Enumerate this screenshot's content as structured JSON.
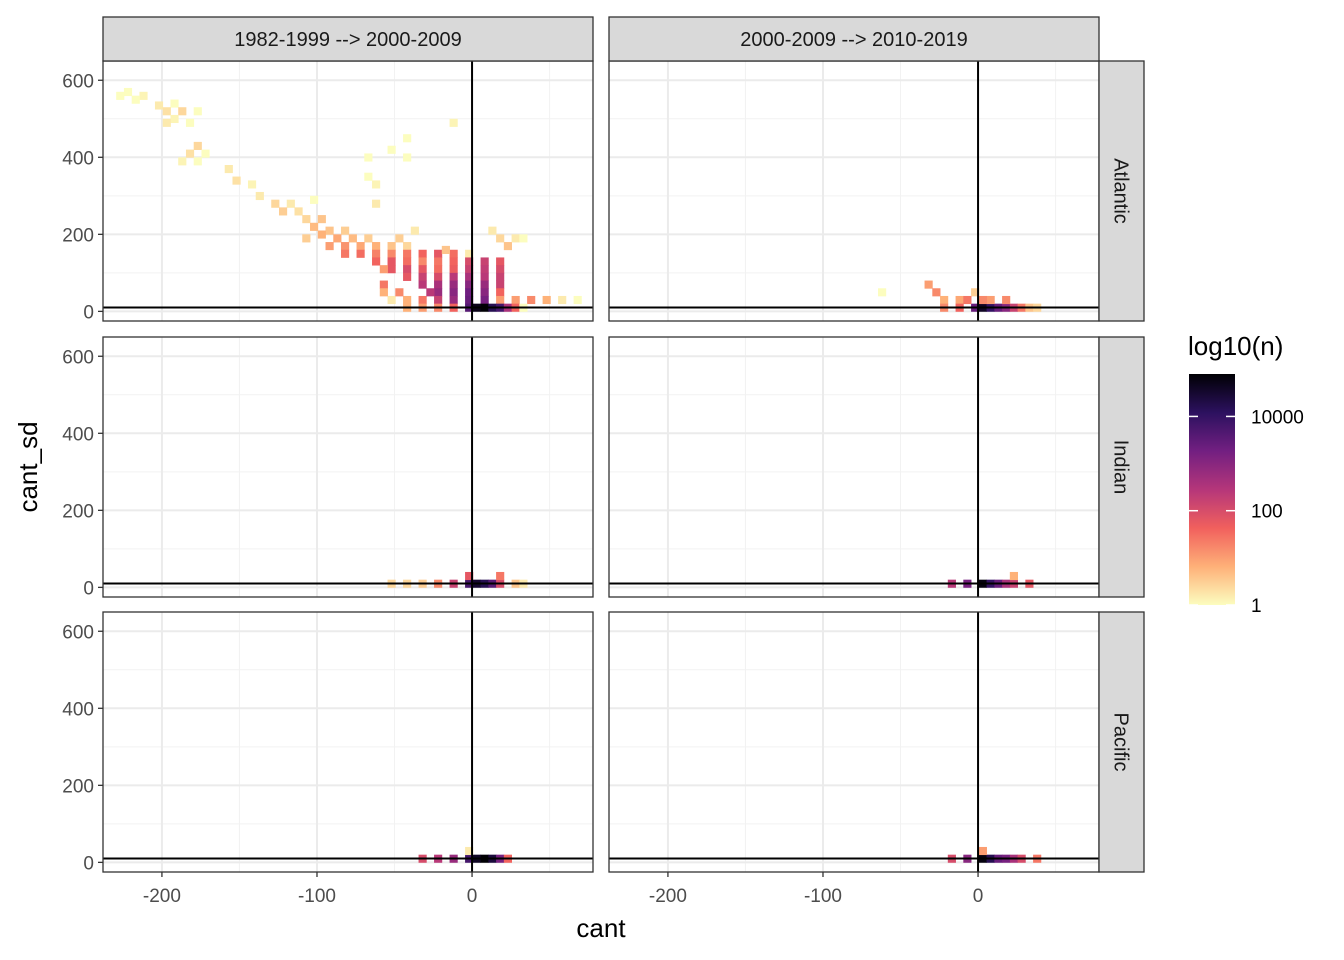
{
  "chart_data": {
    "type": "heatmap",
    "subtype": "2d-bin (facet grid)",
    "xlabel": "cant",
    "ylabel": "cant_sd",
    "xlim": [
      -238,
      78
    ],
    "ylim": [
      -25,
      650
    ],
    "x_ticks": [
      -200,
      -100,
      0
    ],
    "y_ticks": [
      0,
      200,
      400,
      600
    ],
    "bin_width": {
      "x": 5,
      "y": 20
    },
    "reference_lines": {
      "vertical_x": 0,
      "horizontal_y": 10
    },
    "col_facets": [
      "1982-1999 --> 2000-2009",
      "2000-2009 --> 2010-2019"
    ],
    "row_facets": [
      "Atlantic",
      "Indian",
      "Pacific"
    ],
    "legend": {
      "title": "log10(n)",
      "position": "right",
      "scale": "log10",
      "breaks": [
        "1",
        "100",
        "10000"
      ],
      "range_log10": [
        0,
        4.9
      ],
      "colormap": "magma-reversed",
      "colors": [
        "#fcfdbf",
        "#feb078",
        "#f1605d",
        "#b5367a",
        "#721f81",
        "#2c115f",
        "#000004"
      ]
    },
    "grid": true,
    "panels": [
      {
        "row": "Atlantic",
        "col": "1982-1999 --> 2000-2009",
        "bins": [
          [
            -222,
            570,
            0
          ],
          [
            -227,
            560,
            0
          ],
          [
            -212,
            560,
            0.1
          ],
          [
            -217,
            550,
            0
          ],
          [
            -202,
            535,
            0.2
          ],
          [
            -192,
            540,
            0
          ],
          [
            -197,
            520,
            0.3
          ],
          [
            -187,
            520,
            0.4
          ],
          [
            -177,
            520,
            0
          ],
          [
            -192,
            500,
            0.1
          ],
          [
            -182,
            490,
            0
          ],
          [
            -197,
            490,
            0.2
          ],
          [
            -177,
            430,
            0.4
          ],
          [
            -182,
            410,
            0.3
          ],
          [
            -172,
            410,
            0
          ],
          [
            -187,
            390,
            0.1
          ],
          [
            -177,
            390,
            0
          ],
          [
            -157,
            370,
            0.2
          ],
          [
            -152,
            340,
            0.3
          ],
          [
            -142,
            330,
            0.1
          ],
          [
            -137,
            300,
            0.2
          ],
          [
            -127,
            280,
            0.4
          ],
          [
            -117,
            280,
            0.2
          ],
          [
            -122,
            260,
            0.5
          ],
          [
            -112,
            260,
            0.3
          ],
          [
            -102,
            290,
            0
          ],
          [
            -107,
            240,
            0.4
          ],
          [
            -97,
            240,
            0.6
          ],
          [
            -102,
            220,
            0.7
          ],
          [
            -92,
            210,
            0.6
          ],
          [
            -82,
            210,
            0.5
          ],
          [
            -97,
            200,
            0.8
          ],
          [
            -87,
            190,
            0.9
          ],
          [
            -77,
            190,
            0.7
          ],
          [
            -67,
            190,
            0.5
          ],
          [
            -92,
            170,
            1.0
          ],
          [
            -82,
            170,
            1.1
          ],
          [
            -72,
            170,
            0.9
          ],
          [
            -62,
            170,
            0.8
          ],
          [
            -52,
            170,
            0.6
          ],
          [
            -42,
            170,
            0.4
          ],
          [
            -82,
            150,
            1.4
          ],
          [
            -72,
            150,
            1.5
          ],
          [
            -62,
            150,
            1.3
          ],
          [
            -52,
            150,
            1.2
          ],
          [
            -42,
            150,
            1.4
          ],
          [
            -32,
            150,
            1.6
          ],
          [
            -22,
            150,
            1.8
          ],
          [
            -12,
            150,
            1.5
          ],
          [
            -2,
            150,
            0.2
          ],
          [
            -62,
            130,
            1.6
          ],
          [
            -52,
            130,
            1.8
          ],
          [
            -42,
            130,
            1.5
          ],
          [
            -32,
            130,
            1.2
          ],
          [
            -22,
            130,
            1.4
          ],
          [
            -12,
            130,
            1.6
          ],
          [
            -2,
            130,
            2.0
          ],
          [
            8,
            130,
            2.2
          ],
          [
            18,
            130,
            1.8
          ],
          [
            23,
            170,
            0.6
          ],
          [
            18,
            190,
            0.4
          ],
          [
            13,
            210,
            0.2
          ],
          [
            28,
            190,
            0.2
          ],
          [
            33,
            190,
            0
          ],
          [
            -52,
            110,
            1.8
          ],
          [
            -42,
            110,
            2.0
          ],
          [
            -32,
            110,
            1.8
          ],
          [
            -22,
            110,
            1.5
          ],
          [
            -12,
            110,
            1.7
          ],
          [
            -2,
            110,
            2.2
          ],
          [
            8,
            110,
            2.3
          ],
          [
            18,
            110,
            2.0
          ],
          [
            -42,
            90,
            1.8
          ],
          [
            -32,
            90,
            2.2
          ],
          [
            -22,
            90,
            2.0
          ],
          [
            -12,
            90,
            2.4
          ],
          [
            -2,
            90,
            2.6
          ],
          [
            8,
            90,
            2.4
          ],
          [
            18,
            90,
            2.2
          ],
          [
            -32,
            70,
            2.4
          ],
          [
            -22,
            70,
            2.6
          ],
          [
            -12,
            70,
            2.8
          ],
          [
            -2,
            70,
            3.0
          ],
          [
            8,
            70,
            2.8
          ],
          [
            18,
            70,
            2.2
          ],
          [
            -22,
            50,
            2.8
          ],
          [
            -12,
            50,
            3.0
          ],
          [
            -2,
            50,
            3.3
          ],
          [
            8,
            50,
            3.0
          ],
          [
            18,
            50,
            1.6
          ],
          [
            -52,
            30,
            0.2
          ],
          [
            -42,
            30,
            0.8
          ],
          [
            -32,
            30,
            1.4
          ],
          [
            -22,
            30,
            2.2
          ],
          [
            -12,
            30,
            2.8
          ],
          [
            -2,
            30,
            3.4
          ],
          [
            8,
            30,
            3.2
          ],
          [
            18,
            30,
            1.0
          ],
          [
            28,
            30,
            1.0
          ],
          [
            38,
            30,
            1.2
          ],
          [
            48,
            30,
            0.8
          ],
          [
            58,
            30,
            0.2
          ],
          [
            68,
            30,
            0
          ],
          [
            -42,
            10,
            0.8
          ],
          [
            -32,
            10,
            1.0
          ],
          [
            -22,
            10,
            1.2
          ],
          [
            -12,
            10,
            1.6
          ],
          [
            -2,
            10,
            3.6
          ],
          [
            3,
            10,
            4.7
          ],
          [
            8,
            10,
            4.9
          ],
          [
            13,
            10,
            4.2
          ],
          [
            18,
            10,
            3.8
          ],
          [
            23,
            10,
            2.6
          ],
          [
            28,
            10,
            1.6
          ],
          [
            33,
            10,
            0
          ],
          [
            -107,
            190,
            0.5
          ],
          [
            -57,
            110,
            1.0
          ],
          [
            -47,
            190,
            0.5
          ],
          [
            -37,
            210,
            0.2
          ],
          [
            -17,
            160,
            0.6
          ],
          [
            -57,
            70,
            1.4
          ],
          [
            -47,
            50,
            1.2
          ],
          [
            -27,
            50,
            2.4
          ],
          [
            -57,
            50,
            0.8
          ],
          [
            -62,
            330,
            0.1
          ],
          [
            -62,
            280,
            0.2
          ],
          [
            -67,
            400,
            0
          ],
          [
            -67,
            350,
            0
          ],
          [
            -42,
            400,
            0
          ],
          [
            -42,
            450,
            0
          ],
          [
            -52,
            420,
            0
          ],
          [
            -12,
            490,
            0.1
          ]
        ]
      },
      {
        "row": "Atlantic",
        "col": "2000-2009 --> 2010-2019",
        "bins": [
          [
            -62,
            50,
            0
          ],
          [
            -32,
            70,
            1.0
          ],
          [
            -27,
            50,
            1.2
          ],
          [
            -22,
            30,
            0.8
          ],
          [
            -12,
            30,
            0.9
          ],
          [
            -2,
            50,
            0.5
          ],
          [
            -22,
            10,
            1.2
          ],
          [
            -12,
            10,
            1.6
          ],
          [
            -2,
            10,
            3.4
          ],
          [
            3,
            10,
            4.6
          ],
          [
            8,
            10,
            4.0
          ],
          [
            13,
            10,
            3.4
          ],
          [
            18,
            10,
            3.0
          ],
          [
            23,
            10,
            2.2
          ],
          [
            28,
            10,
            1.4
          ],
          [
            33,
            10,
            0.6
          ],
          [
            38,
            10,
            0.4
          ],
          [
            8,
            30,
            1.0
          ],
          [
            18,
            30,
            1.2
          ],
          [
            -7,
            30,
            1.4
          ],
          [
            3,
            30,
            1.2
          ]
        ]
      },
      {
        "row": "Indian",
        "col": "1982-1999 --> 2000-2009",
        "bins": [
          [
            -52,
            10,
            0.4
          ],
          [
            -42,
            10,
            0.4
          ],
          [
            -32,
            10,
            0.5
          ],
          [
            -22,
            10,
            1.2
          ],
          [
            -12,
            10,
            2.2
          ],
          [
            -2,
            10,
            3.8
          ],
          [
            3,
            10,
            4.5
          ],
          [
            8,
            10,
            4.2
          ],
          [
            13,
            10,
            3.6
          ],
          [
            18,
            10,
            2.0
          ],
          [
            28,
            10,
            0.6
          ],
          [
            33,
            10,
            0.2
          ],
          [
            -2,
            30,
            1.8
          ],
          [
            18,
            30,
            1.4
          ]
        ]
      },
      {
        "row": "Indian",
        "col": "2000-2009 --> 2010-2019",
        "bins": [
          [
            -17,
            10,
            2.4
          ],
          [
            -7,
            10,
            3.2
          ],
          [
            3,
            10,
            4.8
          ],
          [
            8,
            10,
            4.0
          ],
          [
            13,
            10,
            3.4
          ],
          [
            18,
            10,
            2.6
          ],
          [
            23,
            10,
            2.2
          ],
          [
            33,
            10,
            1.8
          ],
          [
            23,
            30,
            0.8
          ]
        ]
      },
      {
        "row": "Pacific",
        "col": "1982-1999 --> 2000-2009",
        "bins": [
          [
            -32,
            10,
            2.0
          ],
          [
            -22,
            10,
            2.4
          ],
          [
            -12,
            10,
            2.8
          ],
          [
            -2,
            10,
            3.8
          ],
          [
            3,
            10,
            4.6
          ],
          [
            8,
            10,
            4.9
          ],
          [
            13,
            10,
            4.4
          ],
          [
            18,
            10,
            3.2
          ],
          [
            23,
            10,
            1.6
          ],
          [
            -2,
            30,
            0.2
          ]
        ]
      },
      {
        "row": "Pacific",
        "col": "2000-2009 --> 2010-2019",
        "bins": [
          [
            -17,
            10,
            2.0
          ],
          [
            -7,
            10,
            3.0
          ],
          [
            3,
            10,
            4.8
          ],
          [
            8,
            10,
            4.2
          ],
          [
            13,
            10,
            3.4
          ],
          [
            18,
            10,
            3.2
          ],
          [
            23,
            10,
            2.6
          ],
          [
            28,
            10,
            2.0
          ],
          [
            38,
            10,
            1.4
          ],
          [
            3,
            30,
            1.0
          ]
        ]
      }
    ]
  }
}
